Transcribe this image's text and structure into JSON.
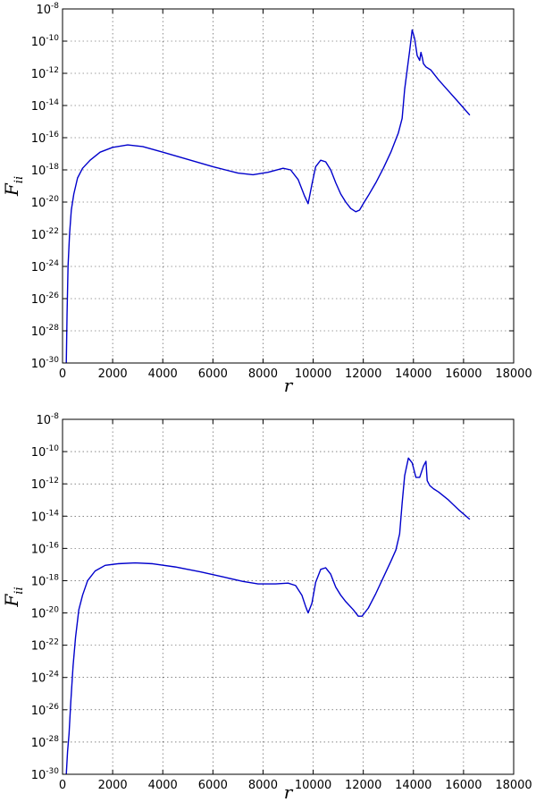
{
  "chart_data": [
    {
      "type": "line",
      "title": "",
      "xlabel": "r",
      "ylabel_base": "F",
      "ylabel_sub": "ii",
      "xlim": [
        0,
        18000
      ],
      "ylim_log10": [
        -30,
        -8
      ],
      "yscale": "log",
      "grid": true,
      "xticks": [
        "0",
        "2000",
        "4000",
        "6000",
        "8000",
        "10000",
        "12000",
        "14000",
        "16000",
        "18000"
      ],
      "ytick_base": "10",
      "ytick_exponents": [
        "-30",
        "-28",
        "-26",
        "-24",
        "-22",
        "-20",
        "-18",
        "-16",
        "-14",
        "-12",
        "-10",
        "-8"
      ],
      "series": [
        {
          "color": "#0000cc",
          "x": [
            150,
            180,
            220,
            280,
            350,
            450,
            600,
            800,
            1100,
            1500,
            2000,
            2600,
            3200,
            4000,
            5000,
            6000,
            7000,
            7600,
            8200,
            8800,
            9100,
            9400,
            9650,
            9800,
            9950,
            10100,
            10300,
            10500,
            10700,
            10900,
            11100,
            11300,
            11500,
            11700,
            11850,
            12000,
            12200,
            12500,
            12800,
            13100,
            13400,
            13550,
            13650,
            13750,
            13850,
            13950,
            14050,
            14150,
            14250,
            14300,
            14350,
            14400,
            14500,
            14700,
            15000,
            15400,
            15800,
            16250
          ],
          "log10_y": [
            -30,
            -27,
            -24,
            -22,
            -20.5,
            -19.5,
            -18.5,
            -17.9,
            -17.4,
            -16.9,
            -16.6,
            -16.45,
            -16.55,
            -16.9,
            -17.35,
            -17.8,
            -18.2,
            -18.3,
            -18.15,
            -17.9,
            -18.0,
            -18.6,
            -19.6,
            -20.1,
            -18.9,
            -17.8,
            -17.4,
            -17.5,
            -18.0,
            -18.8,
            -19.5,
            -20.0,
            -20.4,
            -20.6,
            -20.5,
            -20.1,
            -19.6,
            -18.8,
            -17.9,
            -16.9,
            -15.7,
            -14.8,
            -13.0,
            -11.8,
            -10.6,
            -9.3,
            -9.85,
            -10.9,
            -11.2,
            -10.7,
            -11.0,
            -11.4,
            -11.6,
            -11.8,
            -12.4,
            -13.1,
            -13.8,
            -14.6
          ]
        }
      ]
    },
    {
      "type": "line",
      "title": "",
      "xlabel": "r",
      "ylabel_base": "F",
      "ylabel_sub": "ii",
      "xlim": [
        0,
        18000
      ],
      "ylim_log10": [
        -30,
        -8
      ],
      "yscale": "log",
      "grid": true,
      "xticks": [
        "0",
        "2000",
        "4000",
        "6000",
        "8000",
        "10000",
        "12000",
        "14000",
        "16000",
        "18000"
      ],
      "ytick_base": "10",
      "ytick_exponents": [
        "-30",
        "-28",
        "-26",
        "-24",
        "-22",
        "-20",
        "-18",
        "-16",
        "-14",
        "-12",
        "-10",
        "-8"
      ],
      "series": [
        {
          "color": "#0000cc",
          "x": [
            150,
            200,
            260,
            330,
            420,
            520,
            650,
            800,
            1000,
            1300,
            1700,
            2200,
            2900,
            3600,
            4500,
            5500,
            6500,
            7200,
            7800,
            8500,
            9000,
            9300,
            9550,
            9700,
            9800,
            9950,
            10100,
            10300,
            10500,
            10700,
            10900,
            11100,
            11300,
            11600,
            11800,
            11950,
            12200,
            12500,
            12800,
            13100,
            13300,
            13450,
            13550,
            13650,
            13800,
            13950,
            14100,
            14250,
            14400,
            14500,
            14550,
            14650,
            14800,
            15000,
            15400,
            15800,
            16250
          ],
          "log10_y": [
            -30,
            -28.6,
            -27.5,
            -25.5,
            -23.3,
            -21.5,
            -19.8,
            -18.9,
            -18.0,
            -17.4,
            -17.05,
            -16.95,
            -16.9,
            -16.95,
            -17.15,
            -17.45,
            -17.8,
            -18.05,
            -18.2,
            -18.2,
            -18.15,
            -18.3,
            -18.9,
            -19.6,
            -20.0,
            -19.4,
            -18.1,
            -17.3,
            -17.2,
            -17.6,
            -18.4,
            -18.9,
            -19.3,
            -19.8,
            -20.2,
            -20.2,
            -19.7,
            -18.8,
            -17.8,
            -16.8,
            -16.1,
            -15.1,
            -13.2,
            -11.5,
            -10.4,
            -10.7,
            -11.6,
            -11.6,
            -10.9,
            -10.6,
            -11.8,
            -12.1,
            -12.3,
            -12.5,
            -13.0,
            -13.6,
            -14.2
          ]
        }
      ]
    }
  ]
}
